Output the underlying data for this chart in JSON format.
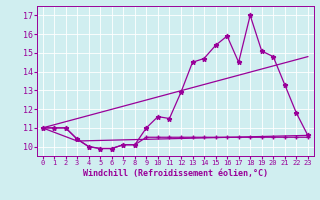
{
  "xlabel": "Windchill (Refroidissement éolien,°C)",
  "bg_color": "#d0eef0",
  "line_color": "#990099",
  "x_ticks": [
    0,
    1,
    2,
    3,
    4,
    5,
    6,
    7,
    8,
    9,
    10,
    11,
    12,
    13,
    14,
    15,
    16,
    17,
    18,
    19,
    20,
    21,
    22,
    23
  ],
  "y_ticks": [
    10,
    11,
    12,
    13,
    14,
    15,
    16,
    17
  ],
  "ylim": [
    9.5,
    17.5
  ],
  "xlim": [
    -0.5,
    23.5
  ],
  "series1_x": [
    0,
    1,
    2,
    3,
    4,
    5,
    6,
    7,
    8,
    9,
    10,
    11,
    12,
    13,
    14,
    15,
    16,
    17,
    18,
    19,
    20,
    21,
    22,
    23
  ],
  "series1_y": [
    11.0,
    11.0,
    11.0,
    10.4,
    10.0,
    9.9,
    9.9,
    10.1,
    10.1,
    11.0,
    11.6,
    11.5,
    12.9,
    14.5,
    14.7,
    15.4,
    15.9,
    14.5,
    17.0,
    15.1,
    14.8,
    13.3,
    11.8,
    10.6
  ],
  "series2_x": [
    0,
    1,
    2,
    3,
    4,
    5,
    6,
    7,
    8,
    9,
    10,
    11,
    12,
    13,
    14,
    15,
    16,
    17,
    18,
    19,
    20,
    21,
    22,
    23
  ],
  "series2_y": [
    11.0,
    11.0,
    11.0,
    10.4,
    10.0,
    9.9,
    9.9,
    10.1,
    10.1,
    10.5,
    10.5,
    10.5,
    10.5,
    10.5,
    10.5,
    10.5,
    10.5,
    10.5,
    10.5,
    10.5,
    10.5,
    10.5,
    10.5,
    10.5
  ],
  "series3_x": [
    0,
    3,
    23
  ],
  "series3_y": [
    11.0,
    10.3,
    10.6
  ],
  "series4_x": [
    0,
    23
  ],
  "series4_y": [
    11.0,
    14.8
  ]
}
